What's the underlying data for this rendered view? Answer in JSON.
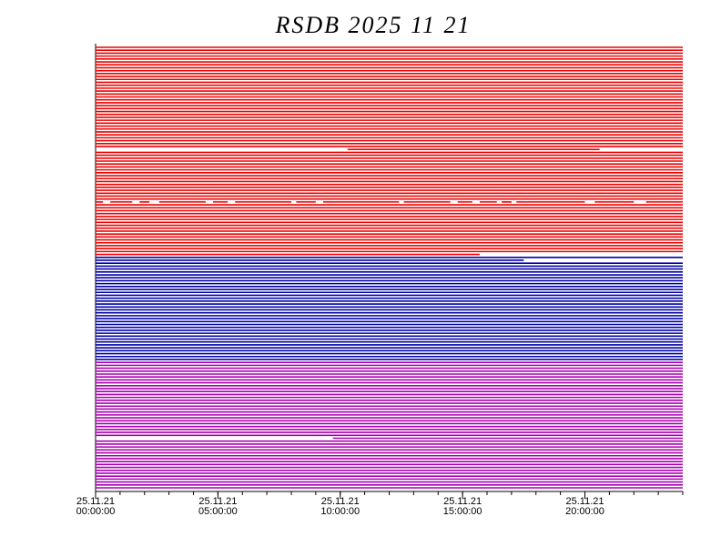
{
  "chart_data": {
    "type": "timeline",
    "title": "RSDB 2025 11 21",
    "xlim": [
      0,
      24
    ],
    "xticks": [
      {
        "value": 0,
        "label": "25.11.21 00:00:00"
      },
      {
        "value": 5,
        "label": "25.11.21 05:00:00"
      },
      {
        "value": 10,
        "label": "25.11.21 10:00:00"
      },
      {
        "value": 15,
        "label": "25.11.21 15:00:00"
      },
      {
        "value": 20,
        "label": "25.11.21 20:00:00"
      }
    ],
    "minor_step": 1,
    "groups": [
      {
        "color": "#ee0000",
        "rows": [
          [
            [
              0,
              24
            ]
          ],
          [
            [
              0,
              24
            ]
          ],
          [
            [
              0,
              24
            ]
          ],
          [
            [
              0,
              24
            ]
          ],
          [
            [
              0,
              24
            ]
          ],
          [
            [
              0,
              24
            ]
          ],
          [
            [
              0,
              24
            ]
          ],
          [
            [
              0,
              24
            ]
          ],
          [
            [
              0,
              24
            ]
          ],
          [
            [
              0,
              24
            ]
          ],
          [
            [
              0,
              24
            ]
          ],
          [
            [
              0,
              24
            ]
          ],
          [
            [
              0,
              24
            ]
          ],
          [
            [
              0,
              24
            ]
          ],
          [
            [
              0,
              24
            ]
          ],
          [
            [
              0,
              24
            ]
          ],
          [
            [
              0,
              24
            ]
          ],
          [
            [
              0,
              24
            ]
          ],
          [
            [
              0,
              24
            ]
          ],
          [
            [
              0,
              24
            ]
          ],
          [
            [
              0,
              24
            ]
          ],
          [
            [
              0,
              24
            ]
          ],
          [
            [
              0,
              24
            ]
          ],
          [
            [
              0,
              24
            ]
          ],
          [
            [
              0,
              24
            ]
          ],
          [
            [
              0,
              24
            ]
          ],
          [
            [
              0,
              24
            ]
          ],
          [
            [
              0,
              24
            ]
          ],
          [
            [
              0,
              24
            ]
          ],
          [
            [
              0,
              24
            ]
          ],
          [
            [
              0,
              24
            ]
          ],
          [
            [
              0,
              24
            ]
          ],
          [
            [
              0,
              24
            ]
          ],
          [
            [
              0,
              24
            ]
          ],
          [
            [
              0,
              24
            ]
          ],
          [
            [
              10.3,
              20.6
            ]
          ],
          [
            [
              0,
              24
            ]
          ],
          [
            [
              0,
              24
            ]
          ],
          [
            [
              0,
              24
            ]
          ],
          [
            [
              0,
              24
            ]
          ],
          [
            [
              0,
              24
            ]
          ],
          [
            [
              0,
              24
            ]
          ],
          [
            [
              0,
              24
            ]
          ],
          [
            [
              0,
              24
            ]
          ],
          [
            [
              0,
              24
            ]
          ],
          [
            [
              0,
              24
            ]
          ],
          [
            [
              0,
              24
            ]
          ],
          [
            [
              0,
              24
            ]
          ],
          [
            [
              0,
              24
            ]
          ],
          [
            [
              0,
              24
            ]
          ],
          [
            [
              0,
              24
            ]
          ],
          [
            [
              0,
              24
            ]
          ],
          [
            [
              0,
              24
            ]
          ],
          [
            [
              0,
              0.3
            ],
            [
              0.6,
              1.5
            ],
            [
              1.8,
              2.2
            ],
            [
              2.6,
              4.5
            ],
            [
              4.8,
              5.4
            ],
            [
              5.7,
              8.0
            ],
            [
              8.2,
              9.0
            ],
            [
              9.3,
              12.4
            ],
            [
              12.6,
              14.5
            ],
            [
              14.8,
              15.4
            ],
            [
              15.7,
              16.4
            ],
            [
              16.6,
              17.0
            ],
            [
              17.2,
              20.0
            ],
            [
              20.4,
              22.0
            ],
            [
              22.5,
              24
            ]
          ],
          [
            [
              0,
              24
            ]
          ],
          [
            [
              0,
              24
            ]
          ],
          [
            [
              0,
              24
            ]
          ],
          [
            [
              0,
              24
            ]
          ],
          [
            [
              0,
              24
            ]
          ],
          [
            [
              0,
              24
            ]
          ],
          [
            [
              0,
              24
            ]
          ],
          [
            [
              0,
              24
            ]
          ],
          [
            [
              0,
              24
            ]
          ],
          [
            [
              0,
              24
            ]
          ],
          [
            [
              0,
              24
            ]
          ],
          [
            [
              0,
              24
            ]
          ],
          [
            [
              0,
              24
            ]
          ],
          [
            [
              0,
              24
            ]
          ],
          [
            [
              0,
              24
            ]
          ],
          [
            [
              0,
              24
            ]
          ],
          [
            [
              0,
              24
            ]
          ],
          [
            [
              0,
              15.7
            ]
          ]
        ]
      },
      {
        "color": "#0000a8",
        "rows": [
          [
            [
              0,
              24
            ]
          ],
          [
            [
              0,
              17.5
            ]
          ],
          [
            [
              0,
              24
            ]
          ],
          [
            [
              0,
              24
            ]
          ],
          [
            [
              0,
              24
            ]
          ],
          [
            [
              0,
              24
            ]
          ],
          [
            [
              0,
              24
            ]
          ],
          [
            [
              0,
              24
            ]
          ],
          [
            [
              0,
              24
            ]
          ],
          [
            [
              0,
              24
            ]
          ],
          [
            [
              0,
              24
            ]
          ],
          [
            [
              0,
              24
            ]
          ],
          [
            [
              0,
              24
            ]
          ],
          [
            [
              0,
              24
            ]
          ],
          [
            [
              0,
              24
            ]
          ],
          [
            [
              0,
              24
            ]
          ],
          [
            [
              0,
              24
            ]
          ],
          [
            [
              0,
              24
            ]
          ],
          [
            [
              0,
              24
            ]
          ],
          [
            [
              0,
              24
            ]
          ],
          [
            [
              0,
              24
            ]
          ],
          [
            [
              0,
              24
            ]
          ],
          [
            [
              0,
              24
            ]
          ],
          [
            [
              0,
              24
            ]
          ],
          [
            [
              0,
              24
            ]
          ],
          [
            [
              0,
              24
            ]
          ],
          [
            [
              0,
              24
            ]
          ],
          [
            [
              0,
              24
            ]
          ],
          [
            [
              0,
              24
            ]
          ],
          [
            [
              0,
              24
            ]
          ],
          [
            [
              0,
              24
            ]
          ],
          [
            [
              0,
              24
            ]
          ],
          [
            [
              0,
              24
            ]
          ],
          [
            [
              0,
              24
            ]
          ],
          [
            [
              0,
              24
            ]
          ],
          [
            [
              0,
              24
            ]
          ]
        ]
      },
      {
        "color": "#a800b0",
        "rows": [
          [
            [
              0,
              24
            ]
          ],
          [
            [
              0,
              24
            ]
          ],
          [
            [
              0,
              24
            ]
          ],
          [
            [
              0,
              24
            ]
          ],
          [
            [
              0,
              24
            ]
          ],
          [
            [
              0,
              24
            ]
          ],
          [
            [
              0,
              24
            ]
          ],
          [
            [
              0,
              24
            ]
          ],
          [
            [
              0,
              24
            ]
          ],
          [
            [
              0,
              24
            ]
          ],
          [
            [
              0,
              24
            ]
          ],
          [
            [
              0,
              24
            ]
          ],
          [
            [
              0,
              24
            ]
          ],
          [
            [
              0,
              24
            ]
          ],
          [
            [
              0,
              24
            ]
          ],
          [
            [
              0,
              24
            ]
          ],
          [
            [
              0,
              24
            ]
          ],
          [
            [
              0,
              24
            ]
          ],
          [
            [
              0,
              24
            ]
          ],
          [
            [
              0,
              24
            ]
          ],
          [
            [
              0,
              24
            ]
          ],
          [
            [
              0,
              24
            ]
          ],
          [
            [
              0,
              24
            ]
          ],
          [
            [
              0,
              24
            ]
          ],
          [
            [
              0,
              24
            ]
          ],
          [
            [
              0,
              24
            ]
          ],
          [
            [
              9.7,
              24
            ]
          ],
          [
            [
              0,
              24
            ]
          ],
          [
            [
              0,
              24
            ]
          ],
          [
            [
              0,
              24
            ]
          ],
          [
            [
              0,
              24
            ]
          ],
          [
            [
              0,
              24
            ]
          ],
          [
            [
              0,
              24
            ]
          ],
          [
            [
              0,
              24
            ]
          ],
          [
            [
              0,
              24
            ]
          ],
          [
            [
              0,
              24
            ]
          ],
          [
            [
              0,
              24
            ]
          ],
          [
            [
              0,
              24
            ]
          ],
          [
            [
              0,
              24
            ]
          ],
          [
            [
              0,
              24
            ]
          ],
          [
            [
              0,
              24
            ]
          ],
          [
            [
              0,
              24
            ]
          ],
          [
            [
              0,
              24
            ]
          ],
          [
            [
              0,
              24
            ]
          ]
        ]
      }
    ]
  }
}
